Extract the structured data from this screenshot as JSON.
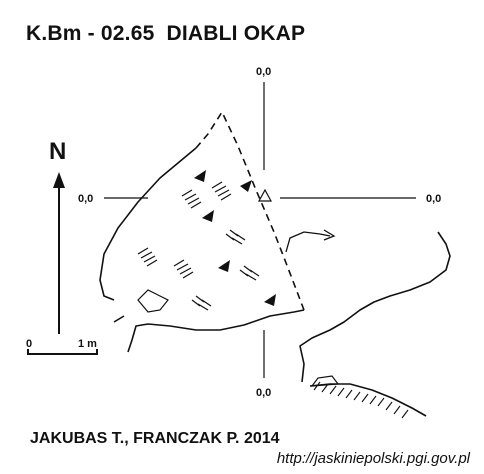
{
  "header": {
    "title": "K.Bm - 02.65  DIABLI OKAP"
  },
  "footer": {
    "authors": "JAKUBAS T., FRANCZAK P. 2014",
    "url": "http://jaskiniepolski.pgi.gov.pl"
  },
  "map": {
    "coordinate_labels": {
      "top": "0,0",
      "left": "0,0",
      "right": "0,0",
      "bottom": "0,0"
    },
    "north_arrow_label": "N",
    "scale_bar": {
      "start_label": "0",
      "end_label": "1 m"
    },
    "line_color": "#111111",
    "background_color": "#ffffff"
  }
}
